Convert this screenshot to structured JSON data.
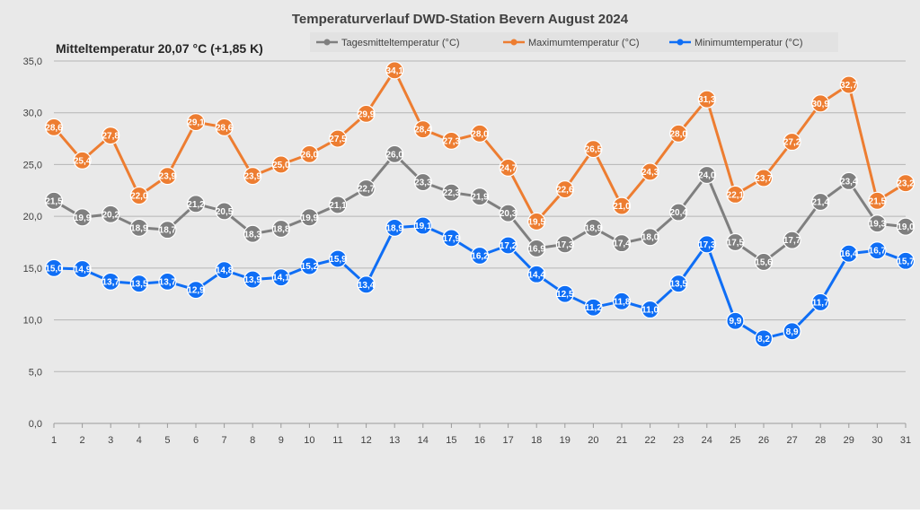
{
  "chart_data": {
    "type": "line",
    "title": "Temperaturverlauf  DWD-Station  Bevern August 2024",
    "subtitle": "Mitteltemperatur 20,07 °C (+1,85 K)",
    "xlabel": "",
    "ylabel": "",
    "ylim": [
      0,
      35
    ],
    "ytick_step": 5,
    "y_ticks": [
      "0,0",
      "5,0",
      "10,0",
      "15,0",
      "20,0",
      "25,0",
      "30,0",
      "35,0"
    ],
    "grid": true,
    "legend_position": "top-right",
    "categories": [
      1,
      2,
      3,
      4,
      5,
      6,
      7,
      8,
      9,
      10,
      11,
      12,
      13,
      14,
      15,
      16,
      17,
      18,
      19,
      20,
      21,
      22,
      23,
      24,
      25,
      26,
      27,
      28,
      29,
      30,
      31
    ],
    "series": [
      {
        "name": "Tagesmitteltemperatur (°C)",
        "color": "#7f7f7f",
        "values": [
          21.5,
          19.9,
          20.2,
          18.9,
          18.7,
          21.2,
          20.5,
          18.3,
          18.8,
          19.9,
          21.1,
          22.7,
          26.0,
          23.3,
          22.3,
          21.9,
          20.3,
          16.9,
          17.3,
          18.9,
          17.4,
          18.0,
          20.4,
          24.0,
          17.5,
          15.6,
          17.7,
          21.4,
          23.4,
          19.3,
          19.0
        ]
      },
      {
        "name": "Maximumtemperatur (°C)",
        "color": "#ed7d31",
        "values": [
          28.6,
          25.4,
          27.8,
          22.0,
          23.9,
          29.1,
          28.6,
          23.9,
          25.0,
          26.0,
          27.5,
          29.9,
          34.1,
          28.4,
          27.3,
          28.0,
          24.7,
          19.5,
          22.6,
          26.5,
          21.0,
          24.3,
          28.0,
          31.3,
          22.1,
          23.7,
          27.2,
          30.9,
          32.7,
          21.5,
          23.2
        ]
      },
      {
        "name": "Minimumtemperatur (°C)",
        "color": "#0f6ef5",
        "values": [
          15.0,
          14.9,
          13.7,
          13.5,
          13.7,
          12.9,
          14.8,
          13.9,
          14.1,
          15.2,
          15.9,
          13.4,
          18.9,
          19.1,
          17.9,
          16.2,
          17.2,
          14.4,
          12.5,
          11.2,
          11.8,
          11.0,
          13.5,
          17.3,
          9.9,
          8.2,
          8.9,
          11.7,
          16.4,
          16.7,
          15.7
        ]
      }
    ]
  }
}
